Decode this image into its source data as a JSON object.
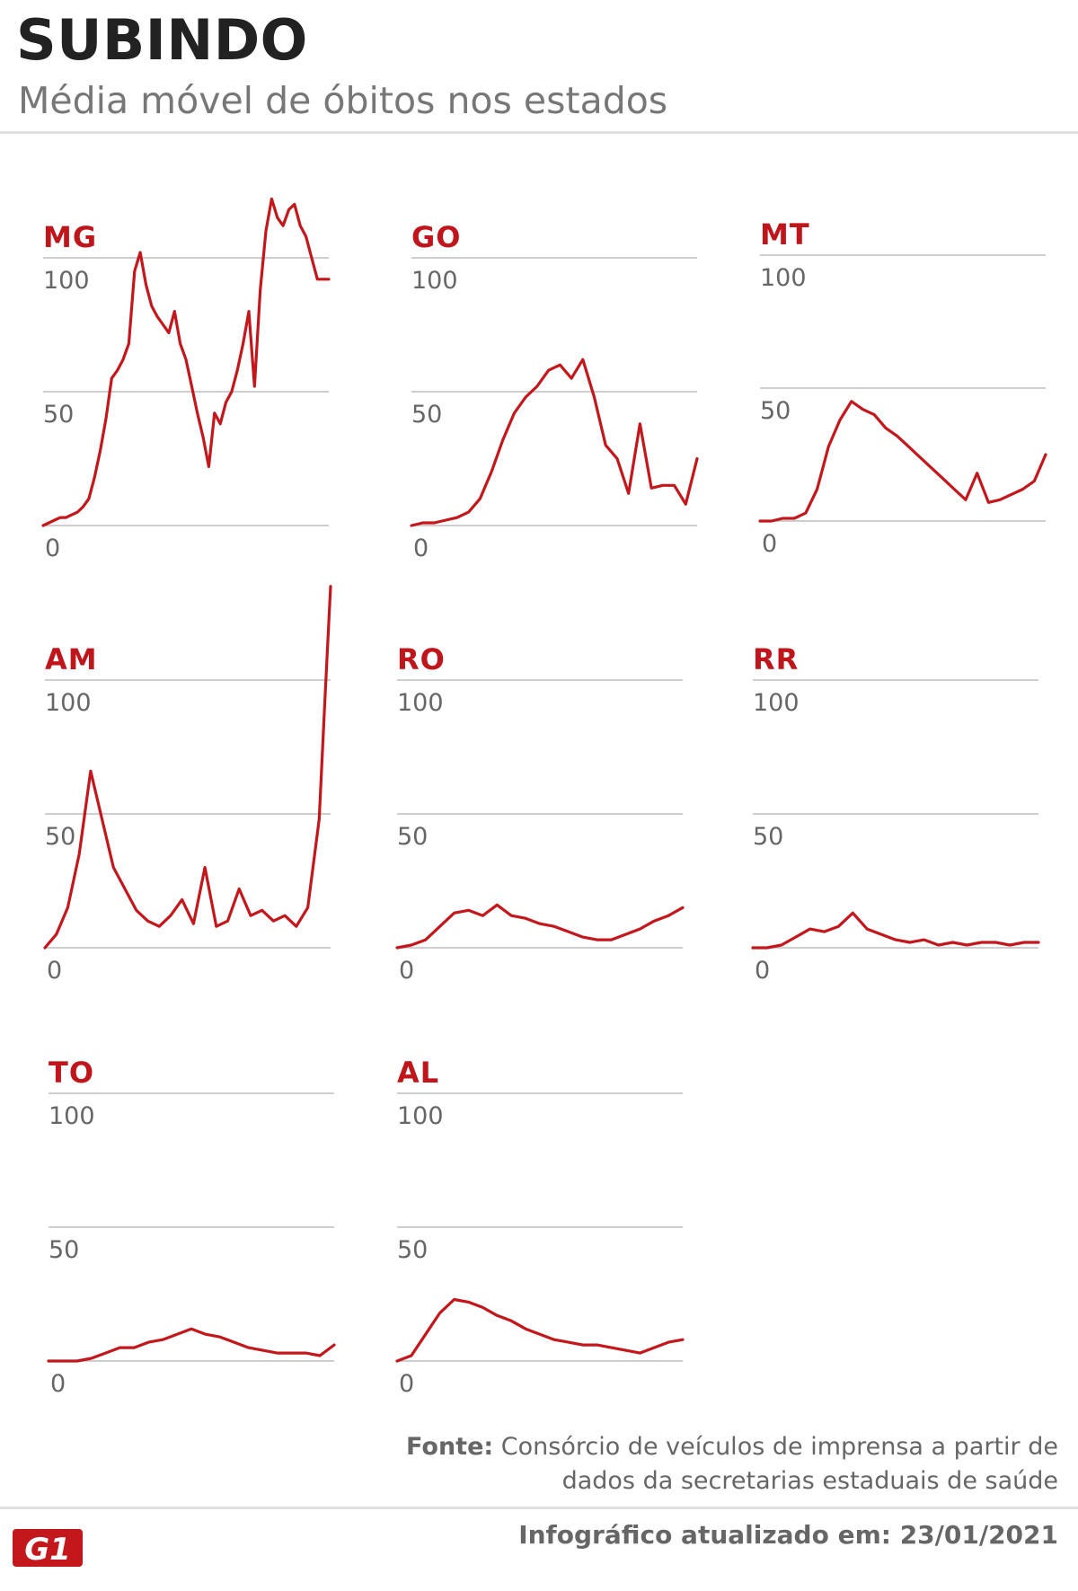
{
  "header": {
    "title": "SUBINDO",
    "subtitle": "Média móvel de óbitos nos estados"
  },
  "footer": {
    "source_label": "Fonte:",
    "source_text": "Consórcio de veículos de imprensa a partir de dados da secretarias estaduais de saúde",
    "updated": "Infográfico atualizado em: 23/01/2021",
    "logo_text": "G1"
  },
  "colors": {
    "line": "#c4171c",
    "label": "#c0151b",
    "grid": "#bdbdbd",
    "tick": "#666666"
  },
  "chart_data": [
    {
      "type": "line",
      "title": "MG",
      "ylim": [
        0,
        100
      ],
      "yticks": [
        0,
        50,
        100
      ],
      "x": [
        0,
        2,
        4,
        6,
        8,
        10,
        12,
        14,
        16,
        18,
        20,
        22,
        24,
        26,
        28,
        30,
        32,
        34,
        36,
        38,
        40,
        42,
        44,
        46,
        48,
        50,
        52,
        54,
        56,
        58,
        60,
        62,
        64,
        66,
        68,
        70,
        72,
        74,
        76,
        78,
        80,
        82,
        84,
        86,
        88,
        90,
        92,
        94,
        96,
        98,
        100
      ],
      "values": [
        0,
        1,
        2,
        3,
        3,
        4,
        5,
        7,
        10,
        18,
        28,
        40,
        55,
        58,
        62,
        68,
        95,
        102,
        90,
        82,
        78,
        75,
        72,
        80,
        68,
        62,
        52,
        42,
        33,
        22,
        42,
        38,
        46,
        50,
        58,
        68,
        80,
        52,
        88,
        110,
        122,
        115,
        112,
        118,
        120,
        112,
        108,
        100,
        92,
        92,
        92
      ]
    },
    {
      "type": "line",
      "title": "GO",
      "ylim": [
        0,
        100
      ],
      "yticks": [
        0,
        50,
        100
      ],
      "x": [
        0,
        4,
        8,
        12,
        16,
        20,
        24,
        28,
        32,
        36,
        40,
        44,
        48,
        52,
        56,
        60,
        64,
        68,
        72,
        76,
        80,
        84,
        88,
        92,
        96,
        100
      ],
      "values": [
        0,
        1,
        1,
        2,
        3,
        5,
        10,
        20,
        32,
        42,
        48,
        52,
        58,
        60,
        55,
        62,
        48,
        30,
        25,
        12,
        38,
        14,
        15,
        15,
        8,
        25
      ]
    },
    {
      "type": "line",
      "title": "MT",
      "ylim": [
        0,
        100
      ],
      "yticks": [
        0,
        50,
        100
      ],
      "x": [
        0,
        4,
        8,
        12,
        16,
        20,
        24,
        28,
        32,
        36,
        40,
        44,
        48,
        52,
        56,
        60,
        64,
        68,
        72,
        76,
        80,
        84,
        88,
        92,
        96,
        100
      ],
      "values": [
        0,
        0,
        1,
        1,
        3,
        12,
        28,
        38,
        45,
        42,
        40,
        35,
        32,
        28,
        24,
        20,
        16,
        12,
        8,
        18,
        7,
        8,
        10,
        12,
        15,
        25
      ]
    },
    {
      "type": "line",
      "title": "AM",
      "ylim": [
        0,
        100
      ],
      "yticks": [
        0,
        50,
        100
      ],
      "x": [
        0,
        4,
        8,
        12,
        16,
        20,
        24,
        28,
        32,
        36,
        40,
        44,
        48,
        52,
        56,
        60,
        64,
        68,
        72,
        76,
        80,
        84,
        88,
        92,
        96,
        98,
        100
      ],
      "values": [
        0,
        5,
        15,
        35,
        66,
        48,
        30,
        22,
        14,
        10,
        8,
        12,
        18,
        9,
        30,
        8,
        10,
        22,
        12,
        14,
        10,
        12,
        8,
        15,
        48,
        92,
        135
      ]
    },
    {
      "type": "line",
      "title": "RO",
      "ylim": [
        0,
        100
      ],
      "yticks": [
        0,
        50,
        100
      ],
      "x": [
        0,
        5,
        10,
        15,
        20,
        25,
        30,
        35,
        40,
        45,
        50,
        55,
        60,
        65,
        70,
        75,
        80,
        85,
        90,
        95,
        100
      ],
      "values": [
        0,
        1,
        3,
        8,
        13,
        14,
        12,
        16,
        12,
        11,
        9,
        8,
        6,
        4,
        3,
        3,
        5,
        7,
        10,
        12,
        15
      ]
    },
    {
      "type": "line",
      "title": "RR",
      "ylim": [
        0,
        100
      ],
      "yticks": [
        0,
        50,
        100
      ],
      "x": [
        0,
        5,
        10,
        15,
        20,
        25,
        30,
        35,
        40,
        45,
        50,
        55,
        60,
        65,
        70,
        75,
        80,
        85,
        90,
        95,
        100
      ],
      "values": [
        0,
        0,
        1,
        4,
        7,
        6,
        8,
        13,
        7,
        5,
        3,
        2,
        3,
        1,
        2,
        1,
        2,
        2,
        1,
        2,
        2
      ]
    },
    {
      "type": "line",
      "title": "TO",
      "ylim": [
        0,
        100
      ],
      "yticks": [
        0,
        50,
        100
      ],
      "x": [
        0,
        5,
        10,
        15,
        20,
        25,
        30,
        35,
        40,
        45,
        50,
        55,
        60,
        65,
        70,
        75,
        80,
        85,
        90,
        95,
        100
      ],
      "values": [
        0,
        0,
        0,
        1,
        3,
        5,
        5,
        7,
        8,
        10,
        12,
        10,
        9,
        7,
        5,
        4,
        3,
        3,
        3,
        2,
        6
      ]
    },
    {
      "type": "line",
      "title": "AL",
      "ylim": [
        0,
        100
      ],
      "yticks": [
        0,
        50,
        100
      ],
      "x": [
        0,
        5,
        10,
        15,
        20,
        25,
        30,
        35,
        40,
        45,
        50,
        55,
        60,
        65,
        70,
        75,
        80,
        85,
        90,
        95,
        100
      ],
      "values": [
        0,
        2,
        10,
        18,
        23,
        22,
        20,
        17,
        15,
        12,
        10,
        8,
        7,
        6,
        6,
        5,
        4,
        3,
        5,
        7,
        8
      ]
    }
  ]
}
